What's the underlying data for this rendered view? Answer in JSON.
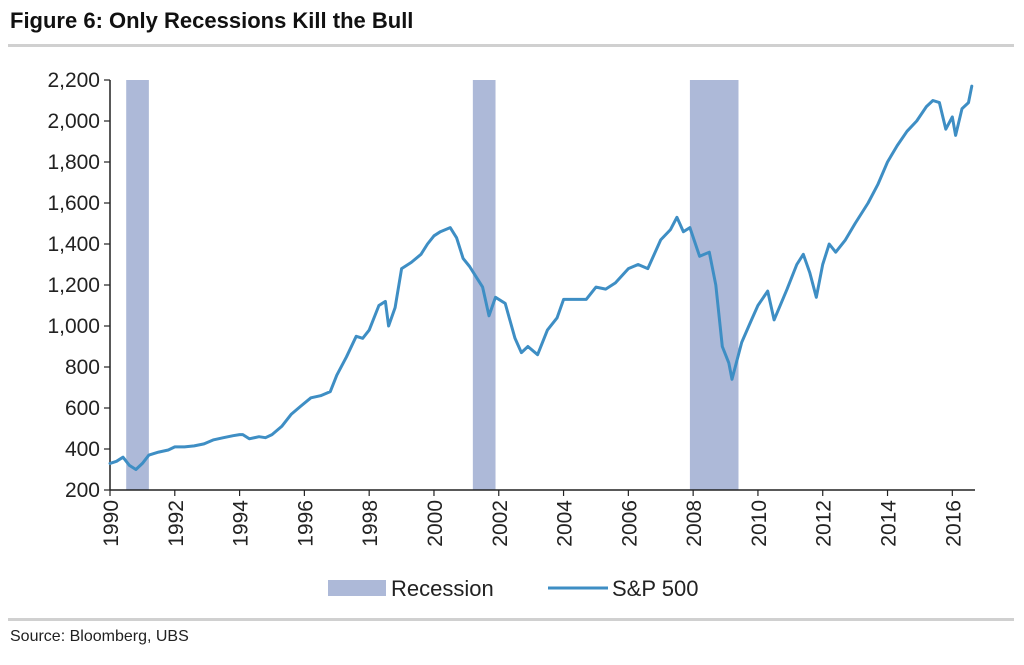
{
  "title": "Figure 6: Only Recessions Kill the Bull",
  "source": "Source:  Bloomberg, UBS",
  "chart_data": {
    "type": "line",
    "ylim": [
      200,
      2200
    ],
    "xlim": [
      1990,
      2016.7
    ],
    "y_ticks": [
      "200",
      "400",
      "600",
      "800",
      "1,000",
      "1,200",
      "1,400",
      "1,600",
      "1,800",
      "2,000",
      "2,200"
    ],
    "y_tick_values": [
      200,
      400,
      600,
      800,
      1000,
      1200,
      1400,
      1600,
      1800,
      2000,
      2200
    ],
    "x_ticks": [
      "1990",
      "1992",
      "1994",
      "1996",
      "1998",
      "2000",
      "2002",
      "2004",
      "2006",
      "2008",
      "2010",
      "2012",
      "2014",
      "2016"
    ],
    "x_tick_values": [
      1990,
      1992,
      1994,
      1996,
      1998,
      2000,
      2002,
      2004,
      2006,
      2008,
      2010,
      2012,
      2014,
      2016
    ],
    "legend": {
      "placement": "bottom-center",
      "recession_label": "Recession",
      "series_label": "S&P 500"
    },
    "recession_color": "#adb9d8",
    "line_color": "#3e8ec4",
    "recessions": [
      {
        "start": 1990.5,
        "end": 1991.2
      },
      {
        "start": 2001.2,
        "end": 2001.9
      },
      {
        "start": 2007.9,
        "end": 2009.4
      }
    ],
    "series": [
      {
        "name": "S&P 500",
        "x": [
          1990.0,
          1990.2,
          1990.4,
          1990.6,
          1990.8,
          1991.0,
          1991.2,
          1991.5,
          1991.8,
          1992.0,
          1992.3,
          1992.6,
          1992.9,
          1993.2,
          1993.5,
          1993.8,
          1994.0,
          1994.1,
          1994.3,
          1994.6,
          1994.8,
          1995.0,
          1995.3,
          1995.6,
          1995.9,
          1996.2,
          1996.5,
          1996.8,
          1997.0,
          1997.3,
          1997.6,
          1997.8,
          1998.0,
          1998.3,
          1998.5,
          1998.6,
          1998.8,
          1999.0,
          1999.3,
          1999.6,
          1999.8,
          2000.0,
          2000.2,
          2000.5,
          2000.7,
          2000.9,
          2001.1,
          2001.3,
          2001.5,
          2001.7,
          2001.9,
          2002.2,
          2002.5,
          2002.7,
          2002.9,
          2003.2,
          2003.5,
          2003.8,
          2004.0,
          2004.3,
          2004.7,
          2005.0,
          2005.3,
          2005.6,
          2006.0,
          2006.3,
          2006.6,
          2007.0,
          2007.3,
          2007.5,
          2007.7,
          2007.9,
          2008.2,
          2008.5,
          2008.7,
          2008.9,
          2009.1,
          2009.2,
          2009.5,
          2009.8,
          2010.0,
          2010.3,
          2010.5,
          2010.9,
          2011.2,
          2011.4,
          2011.6,
          2011.8,
          2012.0,
          2012.2,
          2012.4,
          2012.7,
          2013.0,
          2013.4,
          2013.7,
          2014.0,
          2014.3,
          2014.6,
          2014.9,
          2015.2,
          2015.4,
          2015.6,
          2015.8,
          2016.0,
          2016.1,
          2016.3,
          2016.5,
          2016.6
        ],
        "values": [
          330,
          340,
          360,
          320,
          300,
          330,
          370,
          385,
          395,
          410,
          410,
          415,
          425,
          445,
          455,
          465,
          470,
          470,
          450,
          460,
          455,
          470,
          510,
          570,
          610,
          650,
          660,
          680,
          760,
          850,
          950,
          940,
          980,
          1100,
          1120,
          1000,
          1090,
          1280,
          1310,
          1350,
          1400,
          1440,
          1460,
          1480,
          1430,
          1330,
          1290,
          1240,
          1190,
          1050,
          1140,
          1110,
          940,
          870,
          900,
          860,
          980,
          1040,
          1130,
          1130,
          1130,
          1190,
          1180,
          1210,
          1280,
          1300,
          1280,
          1420,
          1470,
          1530,
          1460,
          1480,
          1340,
          1360,
          1200,
          900,
          820,
          740,
          920,
          1030,
          1100,
          1170,
          1030,
          1180,
          1300,
          1350,
          1260,
          1140,
          1300,
          1400,
          1360,
          1420,
          1500,
          1600,
          1690,
          1800,
          1880,
          1950,
          2000,
          2070,
          2100,
          2090,
          1960,
          2020,
          1930,
          2060,
          2090,
          2170
        ]
      }
    ]
  }
}
